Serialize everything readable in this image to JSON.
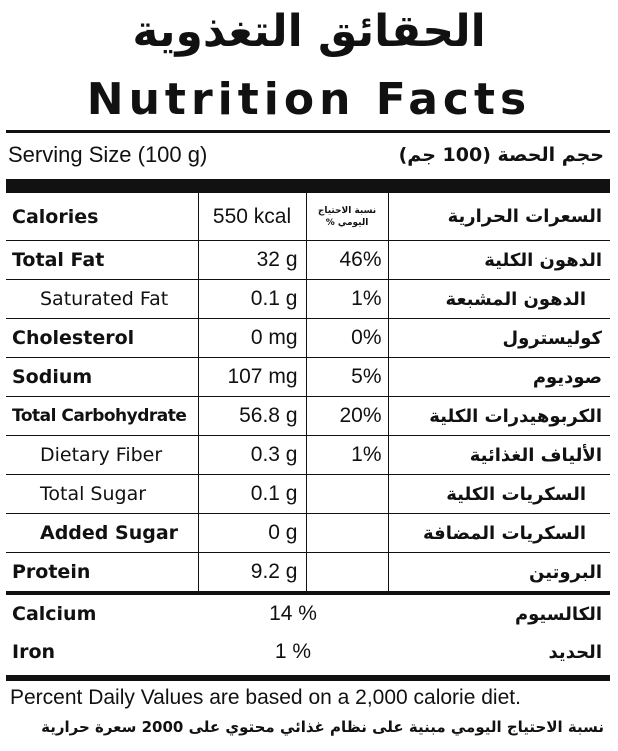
{
  "header": {
    "title_ar": "الحقائق التغذوية",
    "title_en": "Nutrition Facts"
  },
  "serving": {
    "en": "Serving Size (100 g)",
    "ar": "حجم الحصة (100 جم)"
  },
  "calories": {
    "label_en": "Calories",
    "amount": "550 kcal",
    "dv_header": "نسبة الاحتياج اليومي %",
    "label_ar": "السعرات الحرارية"
  },
  "nutrients": [
    {
      "label_en": "Total Fat",
      "amount": "32 g",
      "dv": "46%",
      "label_ar": "الدهون الكلية"
    },
    {
      "label_en": "Saturated Fat",
      "amount": "0.1 g",
      "dv": "1%",
      "label_ar": "الدهون المشبعة"
    },
    {
      "label_en": "Cholesterol",
      "amount": "0 mg",
      "dv": "0%",
      "label_ar": "كوليسترول"
    },
    {
      "label_en": "Sodium",
      "amount": "107 mg",
      "dv": "5%",
      "label_ar": "صوديوم"
    },
    {
      "label_en": "Total Carbohydrate",
      "amount": "56.8 g",
      "dv": "20%",
      "label_ar": "الكربوهيدرات الكلية"
    },
    {
      "label_en": "Dietary Fiber",
      "amount": "0.3 g",
      "dv": "1%",
      "label_ar": "الألياف الغذائية"
    },
    {
      "label_en": "Total Sugar",
      "amount": "0.1 g",
      "dv": "",
      "label_ar": "السكريات الكلية"
    },
    {
      "label_en": "Added Sugar",
      "amount": "0 g",
      "dv": "",
      "label_ar": "السكريات المضافة"
    },
    {
      "label_en": "Protein",
      "amount": "9.2 g",
      "dv": "",
      "label_ar": "البروتين"
    }
  ],
  "minerals": [
    {
      "label_en": "Calcium",
      "value": "14 %",
      "label_ar": "الكالسيوم"
    },
    {
      "label_en": "Iron",
      "value": "1 %",
      "label_ar": "الحديد"
    }
  ],
  "footer": {
    "en": "Percent Daily Values are based on a 2,000 calorie diet.",
    "ar": "نسبة الاحتياج اليومي مبنية على نظام غذائي محتوي على 2000 سعرة حرارية"
  }
}
